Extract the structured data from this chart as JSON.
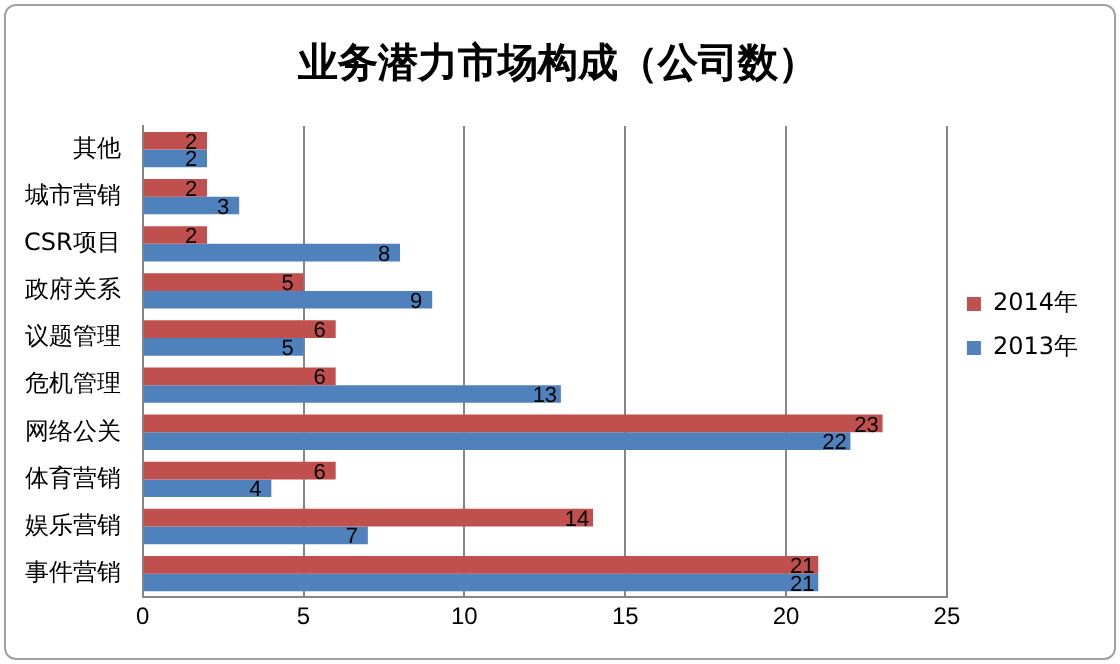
{
  "chart_data": {
    "type": "bar",
    "orientation": "horizontal",
    "title": "业务潜力市场构成（公司数）",
    "categories": [
      "其他",
      "城市营销",
      "CSR项目",
      "政府关系",
      "议题管理",
      "危机管理",
      "网络公关",
      "体育营销",
      "娱乐营销",
      "事件营销"
    ],
    "series": [
      {
        "name": "2014年",
        "color": "#c0504d",
        "values": [
          2,
          2,
          2,
          5,
          6,
          6,
          23,
          6,
          14,
          21
        ]
      },
      {
        "name": "2013年",
        "color": "#4f81bd",
        "values": [
          2,
          3,
          8,
          9,
          5,
          13,
          22,
          4,
          7,
          21
        ]
      }
    ],
    "xlim": [
      0,
      25
    ],
    "xticks": [
      0,
      5,
      10,
      15,
      20,
      25
    ],
    "grid": "x",
    "legend": "right",
    "data_labels": true
  }
}
